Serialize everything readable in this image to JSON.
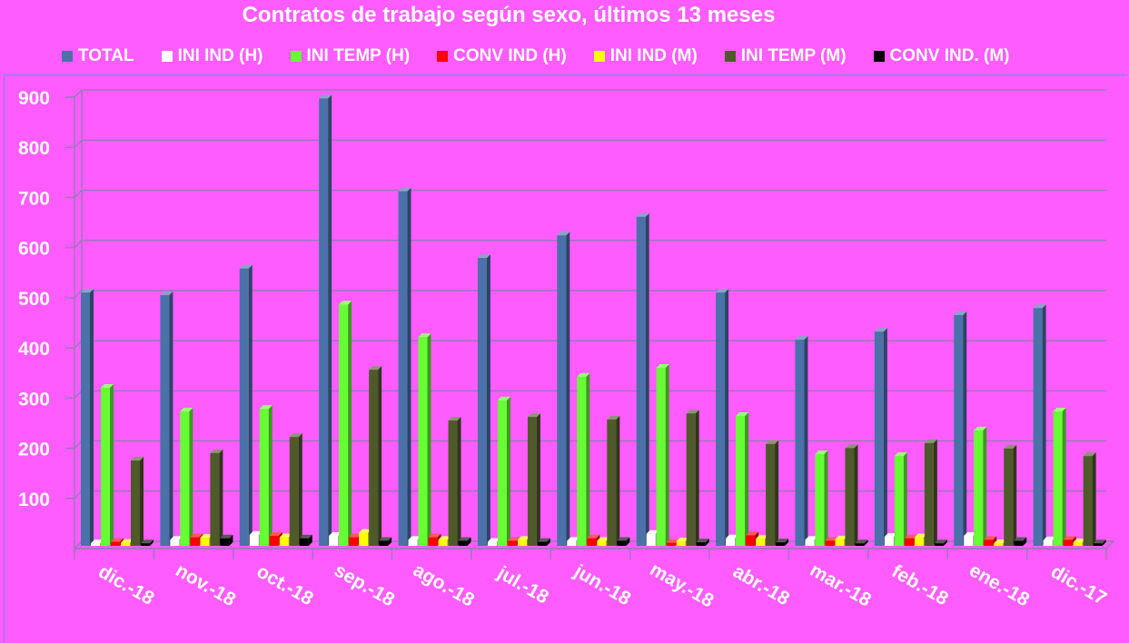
{
  "chart_data": {
    "type": "bar",
    "title": "Contratos de trabajo según sexo, últimos 13 meses",
    "categories": [
      "dic.-18",
      "nov.-18",
      "oct.-18",
      "sep.-18",
      "ago.-18",
      "jul.-18",
      "jun.-18",
      "may.-18",
      "abr.-18",
      "mar.-18",
      "feb.-18",
      "ene.-18",
      "dic.-17"
    ],
    "ylim": [
      0,
      900
    ],
    "yticks": [
      100,
      200,
      300,
      400,
      500,
      600,
      700,
      800,
      900
    ],
    "grid": true,
    "legend_position": "top",
    "series": [
      {
        "name": "TOTAL",
        "color": "#4a72a8",
        "values": [
          505,
          500,
          553,
          892,
          707,
          574,
          619,
          656,
          505,
          411,
          427,
          460,
          474
        ]
      },
      {
        "name": "INI IND (H)",
        "color": "#ffffff",
        "values": [
          5,
          12,
          22,
          20,
          12,
          8,
          10,
          24,
          15,
          12,
          18,
          20,
          11
        ]
      },
      {
        "name": "INI TEMP (H)",
        "color": "#66ff33",
        "values": [
          315,
          268,
          273,
          481,
          416,
          290,
          337,
          355,
          259,
          183,
          179,
          230,
          268
        ]
      },
      {
        "name": "CONV IND (H)",
        "color": "#ff0000",
        "values": [
          8,
          17,
          20,
          17,
          17,
          10,
          15,
          6,
          21,
          10,
          15,
          12,
          12
        ]
      },
      {
        "name": "INI IND (M)",
        "color": "#ffff00",
        "values": [
          6,
          16,
          17,
          26,
          12,
          12,
          10,
          9,
          14,
          13,
          17,
          5,
          7
        ]
      },
      {
        "name": "INI TEMP  (M)",
        "color": "#4f5a2a",
        "values": [
          170,
          185,
          217,
          351,
          250,
          257,
          252,
          264,
          203,
          195,
          205,
          194,
          179
        ]
      },
      {
        "name": "CONV IND.  (M)",
        "color": "#000000",
        "values": [
          5,
          15,
          15,
          10,
          10,
          8,
          10,
          7,
          7,
          5,
          5,
          10,
          5
        ]
      }
    ]
  }
}
